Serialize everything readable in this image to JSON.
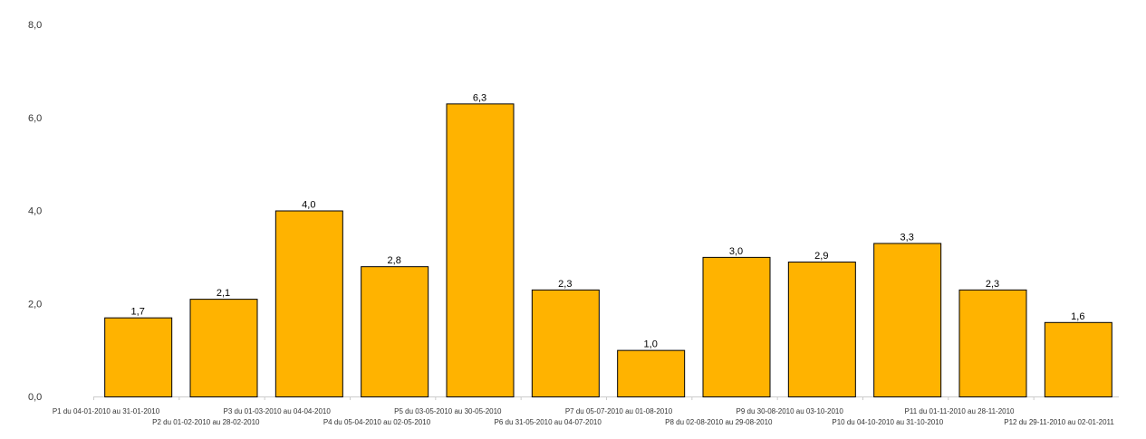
{
  "chart_data": {
    "type": "bar",
    "categories": [
      "P1  du 04-01-2010 au 31-01-2010",
      "P2  du 01-02-2010 au 28-02-2010",
      "P3  du 01-03-2010 au 04-04-2010",
      "P4  du 05-04-2010 au 02-05-2010",
      "P5  du 03-05-2010 au 30-05-2010",
      "P6  du 31-05-2010 au 04-07-2010",
      "P7  du 05-07-2010 au 01-08-2010",
      "P8  du 02-08-2010 au 29-08-2010",
      "P9  du 30-08-2010 au 03-10-2010",
      "P10  du 04-10-2010 au 31-10-2010",
      "P11  du 01-11-2010 au 28-11-2010",
      "P12  du 29-11-2010 au 02-01-2011"
    ],
    "values": [
      1.7,
      2.1,
      4.0,
      2.8,
      6.3,
      2.3,
      1.0,
      3.0,
      2.9,
      3.3,
      2.3,
      1.6
    ],
    "value_labels": [
      "1,7",
      "2,1",
      "4,0",
      "2,8",
      "6,3",
      "2,3",
      "1,0",
      "3,0",
      "2,9",
      "3,3",
      "2,3",
      "1,6"
    ],
    "yticks": [
      0,
      2,
      4,
      6,
      8
    ],
    "ytick_labels": [
      "0,0",
      "2,0",
      "4,0",
      "6,0",
      "8,0"
    ],
    "ylim": [
      0,
      8
    ],
    "grid": false,
    "legend": "none",
    "colors": {
      "bar_fill": "#FFB300",
      "bar_stroke": "#000000",
      "axis": "#cccccc",
      "text": "#333333"
    }
  }
}
